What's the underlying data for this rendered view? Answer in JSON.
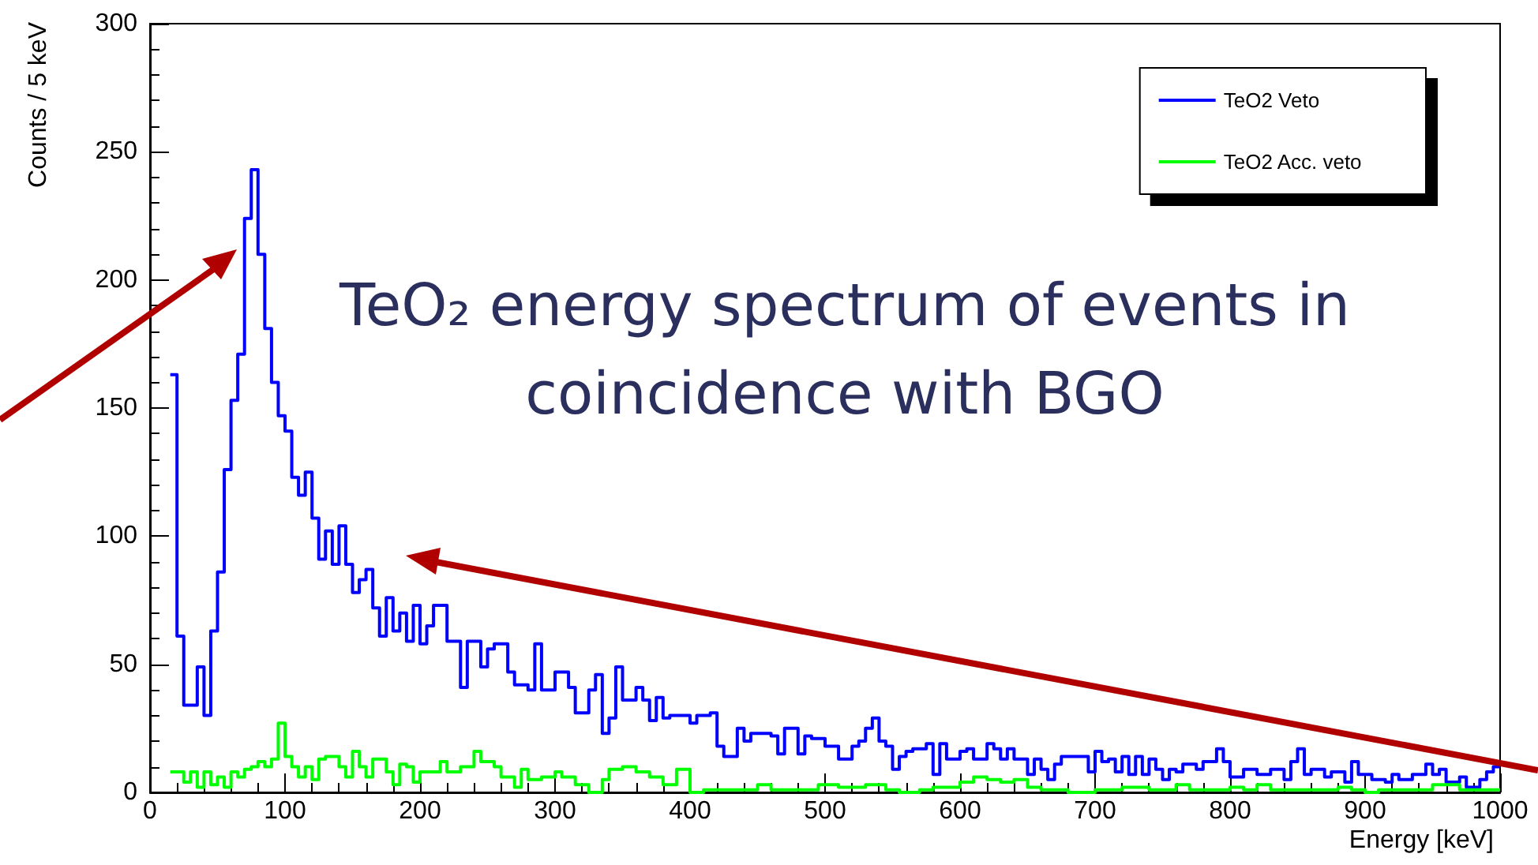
{
  "chart_data": {
    "type": "step",
    "xlabel": "Energy [keV]",
    "ylabel": "Counts / 5 keV",
    "annotations": [
      "TeO₂ energy spectrum of events in coincidence with BGO"
    ],
    "xlim": [
      0,
      1000
    ],
    "xticks": [
      0,
      100,
      200,
      300,
      400,
      500,
      600,
      700,
      800,
      900,
      1000
    ],
    "ylim": [
      0,
      300
    ],
    "yticks": [
      0,
      50,
      100,
      150,
      200,
      250,
      300
    ],
    "grid": false,
    "legend": "top right",
    "series": [
      {
        "name": "TeO2 Veto",
        "color": "#0000ff",
        "x": [
          15,
          20,
          25,
          35,
          40,
          45,
          50,
          55,
          60,
          65,
          70,
          75,
          80,
          85,
          90,
          95,
          100,
          105,
          110,
          115,
          120,
          125,
          130,
          135,
          140,
          145,
          150,
          155,
          160,
          165,
          170,
          175,
          180,
          185,
          190,
          195,
          200,
          205,
          210,
          220,
          230,
          235,
          245,
          250,
          255,
          265,
          270,
          280,
          285,
          290,
          300,
          310,
          315,
          325,
          330,
          335,
          340,
          345,
          350,
          360,
          365,
          370,
          375,
          380,
          385,
          400,
          405,
          415,
          420,
          425,
          435,
          440,
          445,
          460,
          465,
          470,
          480,
          485,
          490,
          500,
          510,
          520,
          525,
          530,
          535,
          540,
          545,
          550,
          555,
          560,
          565,
          575,
          580,
          585,
          590,
          600,
          605,
          610,
          620,
          625,
          630,
          635,
          640,
          650,
          655,
          660,
          665,
          670,
          675,
          695,
          700,
          705,
          710,
          715,
          720,
          725,
          730,
          735,
          740,
          745,
          750,
          755,
          760,
          765,
          775,
          780,
          790,
          795,
          800,
          810,
          820,
          830,
          840,
          845,
          850,
          855,
          860,
          870,
          875,
          885,
          890,
          895,
          905,
          915,
          920,
          925,
          935,
          945,
          950,
          955,
          960,
          970,
          975,
          985,
          990,
          995,
          1000
        ],
        "values": [
          163,
          61,
          34,
          49,
          30,
          63,
          86,
          126,
          153,
          171,
          224,
          243,
          210,
          181,
          160,
          147,
          141,
          123,
          116,
          125,
          107,
          91,
          102,
          89,
          104,
          89,
          78,
          83,
          87,
          72,
          61,
          76,
          63,
          70,
          59,
          73,
          58,
          65,
          73,
          59,
          41,
          59,
          49,
          56,
          58,
          47,
          42,
          40,
          58,
          40,
          47,
          41,
          31,
          40,
          46,
          23,
          29,
          49,
          36,
          41,
          36,
          28,
          37,
          29,
          30,
          27,
          30,
          31,
          18,
          14,
          25,
          20,
          23,
          22,
          15,
          25,
          15,
          22,
          21,
          18,
          13,
          18,
          20,
          25,
          29,
          20,
          18,
          9,
          14,
          16,
          17,
          19,
          7,
          19,
          13,
          16,
          17,
          13,
          19,
          17,
          13,
          17,
          13,
          7,
          13,
          9,
          5,
          11,
          14,
          8,
          16,
          12,
          13,
          8,
          14,
          7,
          14,
          7,
          13,
          9,
          5,
          9,
          8,
          11,
          9,
          12,
          17,
          12,
          6,
          9,
          7,
          9,
          5,
          12,
          17,
          7,
          9,
          6,
          8,
          4,
          12,
          7,
          5,
          4,
          7,
          5,
          7,
          11,
          7,
          9,
          4,
          6,
          2,
          5,
          8,
          10,
          10
        ]
      },
      {
        "name": "TeO2 Acc. veto",
        "color": "#00ff00",
        "x": [
          15,
          25,
          30,
          35,
          40,
          45,
          50,
          55,
          60,
          65,
          70,
          75,
          80,
          85,
          90,
          95,
          100,
          105,
          110,
          115,
          120,
          125,
          130,
          140,
          145,
          150,
          155,
          160,
          165,
          175,
          180,
          185,
          190,
          195,
          200,
          215,
          220,
          230,
          240,
          245,
          255,
          260,
          270,
          275,
          280,
          290,
          300,
          305,
          315,
          325,
          335,
          340,
          350,
          360,
          370,
          380,
          390,
          400,
          410,
          450,
          460,
          495,
          510,
          530,
          545,
          555,
          570,
          580,
          600,
          610,
          620,
          630,
          640,
          650,
          660,
          680,
          700,
          720,
          740,
          760,
          770,
          800,
          810,
          820,
          830,
          880,
          890,
          900,
          910,
          950,
          970,
          1000
        ],
        "values": [
          8,
          4,
          8,
          2,
          8,
          3,
          6,
          2,
          8,
          6,
          9,
          10,
          12,
          10,
          13,
          27,
          14,
          10,
          6,
          10,
          5,
          13,
          14,
          10,
          6,
          16,
          10,
          6,
          13,
          8,
          3,
          11,
          10,
          4,
          8,
          12,
          8,
          10,
          16,
          12,
          10,
          6,
          2,
          9,
          5,
          6,
          8,
          6,
          3,
          0,
          5,
          9,
          10,
          8,
          6,
          3,
          9,
          0,
          1,
          3,
          1,
          3,
          2,
          3,
          1,
          0,
          1,
          2,
          4,
          6,
          5,
          4,
          5,
          2,
          1,
          0,
          1,
          2,
          1,
          3,
          1,
          2,
          1,
          3,
          1,
          2,
          1,
          0,
          1,
          3,
          1,
          1
        ]
      }
    ]
  }
}
